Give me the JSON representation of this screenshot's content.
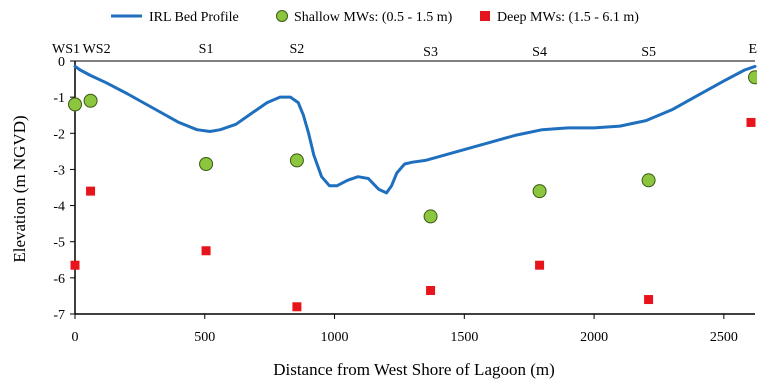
{
  "chart_data": {
    "type": "scatter",
    "title": "",
    "xlabel": "Distance from West Shore of Lagoon (m)",
    "ylabel": "Elevation (m NGVD)",
    "xlim": [
      0,
      2620
    ],
    "ylim": [
      -7,
      0
    ],
    "x_ticks": [
      0,
      500,
      1000,
      1500,
      2000,
      2500
    ],
    "y_ticks": [
      0,
      -1,
      -2,
      -3,
      -4,
      -5,
      -6,
      -7
    ],
    "grid": false,
    "legend_position": "top",
    "colors": {
      "line": "#1f6fbf",
      "shallow": "#8cc63f",
      "deep": "#e8141b"
    },
    "stations": [
      {
        "label": "WS1",
        "x": 0
      },
      {
        "label": "WS2",
        "x": 60
      },
      {
        "label": "S1",
        "x": 505
      },
      {
        "label": "S2",
        "x": 855
      },
      {
        "label": "S3",
        "x": 1370
      },
      {
        "label": "S4",
        "x": 1790
      },
      {
        "label": "S5",
        "x": 2210
      },
      {
        "label": "E",
        "x": 2620
      }
    ],
    "series": [
      {
        "name": "IRL Bed Profile",
        "kind": "line",
        "x": [
          0,
          20,
          60,
          120,
          200,
          300,
          400,
          470,
          520,
          560,
          620,
          680,
          740,
          790,
          830,
          860,
          880,
          900,
          920,
          950,
          980,
          1010,
          1050,
          1090,
          1130,
          1170,
          1200,
          1220,
          1240,
          1270,
          1300,
          1350,
          1400,
          1500,
          1600,
          1700,
          1800,
          1900,
          2000,
          2100,
          2200,
          2300,
          2400,
          2500,
          2580,
          2620
        ],
        "y": [
          -0.15,
          -0.25,
          -0.4,
          -0.6,
          -0.9,
          -1.3,
          -1.7,
          -1.9,
          -1.95,
          -1.9,
          -1.75,
          -1.45,
          -1.15,
          -1.0,
          -1.0,
          -1.15,
          -1.5,
          -2.0,
          -2.6,
          -3.2,
          -3.45,
          -3.45,
          -3.3,
          -3.2,
          -3.25,
          -3.55,
          -3.65,
          -3.45,
          -3.1,
          -2.85,
          -2.8,
          -2.75,
          -2.65,
          -2.45,
          -2.25,
          -2.05,
          -1.9,
          -1.85,
          -1.85,
          -1.8,
          -1.65,
          -1.35,
          -0.95,
          -0.55,
          -0.25,
          -0.15
        ]
      },
      {
        "name": "Shallow MWs: (0.5 - 1.5 m)",
        "kind": "marker-circle",
        "x": [
          0,
          60,
          505,
          855,
          1370,
          1790,
          2210,
          2620
        ],
        "y": [
          -1.2,
          -1.1,
          -2.85,
          -2.75,
          -4.3,
          -3.6,
          -3.3,
          -0.45
        ]
      },
      {
        "name": "Deep MWs: (1.5 - 6.1 m)",
        "kind": "marker-square",
        "x": [
          0,
          60,
          505,
          855,
          1370,
          1790,
          2210,
          2620
        ],
        "y": [
          -5.65,
          -3.6,
          -5.25,
          -6.8,
          -6.35,
          -5.65,
          -6.6,
          -1.7
        ]
      }
    ]
  }
}
